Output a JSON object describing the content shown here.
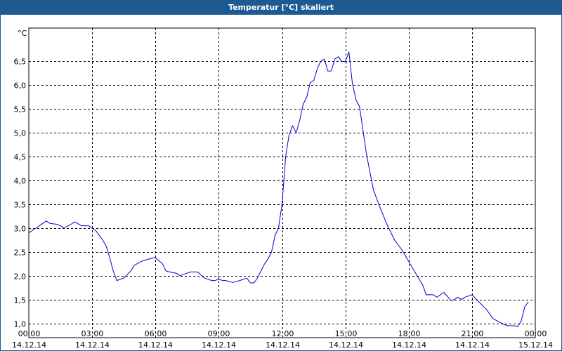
{
  "window": {
    "title": "Temperatur [°C] skaliert"
  },
  "colors": {
    "titlebar": "#1c5a91",
    "series": "#0000cc",
    "grid": "#000000"
  },
  "chart_data": {
    "type": "line",
    "title": "Temperatur [°C] skaliert",
    "ylabel": "°C",
    "xlabel": "",
    "grid": true,
    "ylim": [
      0.7,
      7.2
    ],
    "xlim": [
      0,
      24
    ],
    "yticks": [
      {
        "v": 1.0,
        "label": "1,0"
      },
      {
        "v": 1.5,
        "label": "1,5"
      },
      {
        "v": 2.0,
        "label": "2,0"
      },
      {
        "v": 2.5,
        "label": "2,5"
      },
      {
        "v": 3.0,
        "label": "3,0"
      },
      {
        "v": 3.5,
        "label": "3,5"
      },
      {
        "v": 4.0,
        "label": "4,0"
      },
      {
        "v": 4.5,
        "label": "4,5"
      },
      {
        "v": 5.0,
        "label": "5,0"
      },
      {
        "v": 5.5,
        "label": "5,5"
      },
      {
        "v": 6.0,
        "label": "6,0"
      },
      {
        "v": 6.5,
        "label": "6,5"
      }
    ],
    "xticks": [
      {
        "v": 0,
        "time": "00:00",
        "date": "14.12.14"
      },
      {
        "v": 3,
        "time": "03:00",
        "date": "14.12.14"
      },
      {
        "v": 6,
        "time": "06:00",
        "date": "14.12.14"
      },
      {
        "v": 9,
        "time": "09:00",
        "date": "14.12.14"
      },
      {
        "v": 12,
        "time": "12:00",
        "date": "14.12.14"
      },
      {
        "v": 15,
        "time": "15:00",
        "date": "14.12.14"
      },
      {
        "v": 18,
        "time": "18:00",
        "date": "14.12.14"
      },
      {
        "v": 21,
        "time": "21:00",
        "date": "14.12.14"
      },
      {
        "v": 24,
        "time": "00:00",
        "date": "15.12.14"
      }
    ],
    "series": [
      {
        "x": [
          0,
          0.33,
          0.67,
          0.83,
          1.0,
          1.33,
          1.5,
          1.67,
          2.0,
          2.17,
          2.5,
          2.83,
          3.0,
          3.17,
          3.5,
          3.67,
          3.83,
          4.0,
          4.17,
          4.5,
          4.83,
          5.0,
          5.33,
          5.67,
          6.0,
          6.33,
          6.5,
          6.67,
          7.0,
          7.17,
          7.33,
          7.67,
          8.0,
          8.33,
          8.67,
          8.83,
          9.0,
          9.17,
          9.33,
          9.67,
          10.0,
          10.33,
          10.5,
          10.67,
          10.83,
          11.0,
          11.17,
          11.33,
          11.5,
          11.67,
          11.83,
          12.0,
          12.17,
          12.33,
          12.5,
          12.67,
          12.83,
          13.0,
          13.17,
          13.33,
          13.5,
          13.67,
          13.83,
          14.0,
          14.17,
          14.33,
          14.5,
          14.67,
          14.83,
          15.0,
          15.17,
          15.33,
          15.5,
          15.67,
          16.0,
          16.33,
          16.67,
          17.0,
          17.33,
          17.67,
          18.0,
          18.33,
          18.67,
          18.83,
          19.0,
          19.17,
          19.33,
          19.67,
          20.0,
          20.17,
          20.33,
          20.5,
          20.67,
          21.0,
          21.33,
          21.67,
          22.0,
          22.33,
          22.67,
          23.0,
          23.17,
          23.33,
          23.5,
          23.67
        ],
        "y": [
          2.9,
          3.0,
          3.1,
          3.15,
          3.1,
          3.08,
          3.05,
          3.0,
          3.08,
          3.13,
          3.05,
          3.05,
          3.0,
          2.95,
          2.75,
          2.62,
          2.38,
          2.1,
          1.9,
          1.95,
          2.1,
          2.22,
          2.3,
          2.35,
          2.38,
          2.25,
          2.1,
          2.08,
          2.05,
          2.0,
          2.03,
          2.08,
          2.08,
          1.95,
          1.9,
          1.9,
          1.93,
          1.9,
          1.9,
          1.86,
          1.9,
          1.95,
          1.85,
          1.85,
          1.95,
          2.1,
          2.25,
          2.35,
          2.5,
          2.85,
          3.0,
          3.5,
          4.5,
          4.95,
          5.15,
          5.0,
          5.25,
          5.6,
          5.75,
          6.05,
          6.1,
          6.35,
          6.5,
          6.55,
          6.3,
          6.3,
          6.55,
          6.6,
          6.5,
          6.5,
          6.7,
          6.05,
          5.7,
          5.55,
          4.55,
          3.8,
          3.4,
          3.05,
          2.75,
          2.55,
          2.3,
          2.05,
          1.8,
          1.6,
          1.6,
          1.6,
          1.55,
          1.65,
          1.48,
          1.5,
          1.55,
          1.5,
          1.55,
          1.6,
          1.45,
          1.3,
          1.1,
          1.02,
          0.95,
          0.95,
          0.93,
          1.05,
          1.35,
          1.45
        ]
      }
    ]
  }
}
